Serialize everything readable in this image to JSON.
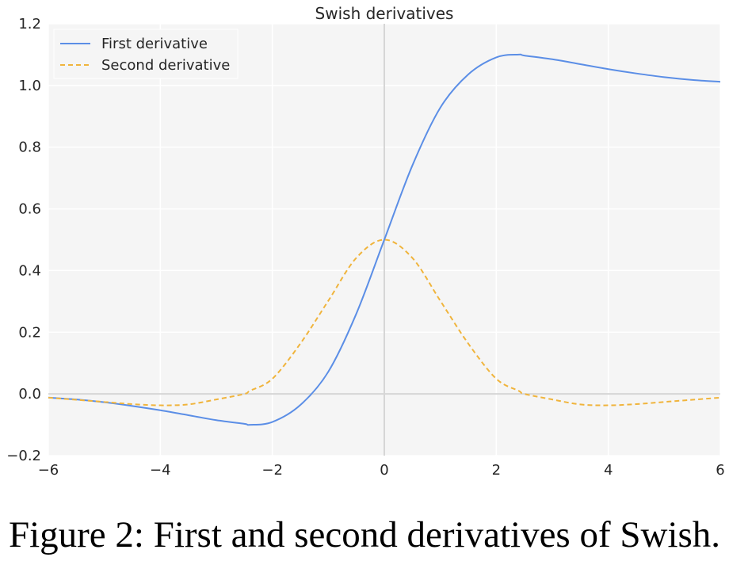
{
  "caption": "Figure 2: First and second derivatives of Swish.",
  "colors": {
    "first_derivative": "#5b8ee6",
    "second_derivative": "#f0b43c",
    "plot_background": "#f5f5f5",
    "grid": "#ffffff",
    "zero_axis": "#d6d6d6"
  },
  "chart_data": {
    "type": "line",
    "title": "Swish derivatives",
    "xlabel": "",
    "ylabel": "",
    "xlim": [
      -6,
      6
    ],
    "ylim": [
      -0.2,
      1.2
    ],
    "x_ticks": [
      -6,
      -4,
      -2,
      0,
      2,
      4,
      6
    ],
    "x_tick_labels": [
      "−6",
      "−4",
      "−2",
      "0",
      "2",
      "4",
      "6"
    ],
    "y_ticks": [
      -0.2,
      0.0,
      0.2,
      0.4,
      0.6,
      0.8,
      1.0,
      1.2
    ],
    "y_tick_labels": [
      "−0.2",
      "0.0",
      "0.2",
      "0.4",
      "0.6",
      "0.8",
      "1.0",
      "1.2"
    ],
    "grid": true,
    "legend_position": "top-left",
    "x": [
      -6,
      -5.5,
      -5,
      -4.5,
      -4,
      -3.5,
      -3,
      -2.5,
      -2.4,
      -2,
      -1.5,
      -1,
      -0.5,
      0,
      0.5,
      1,
      1.5,
      2,
      2.4,
      2.5,
      3,
      3.5,
      4,
      4.5,
      5,
      5.5,
      6
    ],
    "series": [
      {
        "name": "First derivative",
        "style": "solid",
        "color": "#5b8ee6",
        "values": [
          -0.012,
          -0.018,
          -0.027,
          -0.039,
          -0.053,
          -0.069,
          -0.085,
          -0.097,
          -0.1,
          -0.091,
          -0.036,
          0.072,
          0.26,
          0.5,
          0.74,
          0.928,
          1.036,
          1.091,
          1.1,
          1.097,
          1.085,
          1.069,
          1.053,
          1.039,
          1.027,
          1.018,
          1.012
        ]
      },
      {
        "name": "Second derivative",
        "style": "dashed",
        "color": "#f0b43c",
        "values": [
          -0.012,
          -0.019,
          -0.026,
          -0.033,
          -0.037,
          -0.034,
          -0.018,
          0.0,
          0.01,
          0.049,
          0.163,
          0.302,
          0.441,
          0.5,
          0.441,
          0.302,
          0.163,
          0.049,
          0.01,
          0.0,
          -0.018,
          -0.034,
          -0.037,
          -0.033,
          -0.026,
          -0.019,
          -0.012
        ]
      }
    ]
  }
}
